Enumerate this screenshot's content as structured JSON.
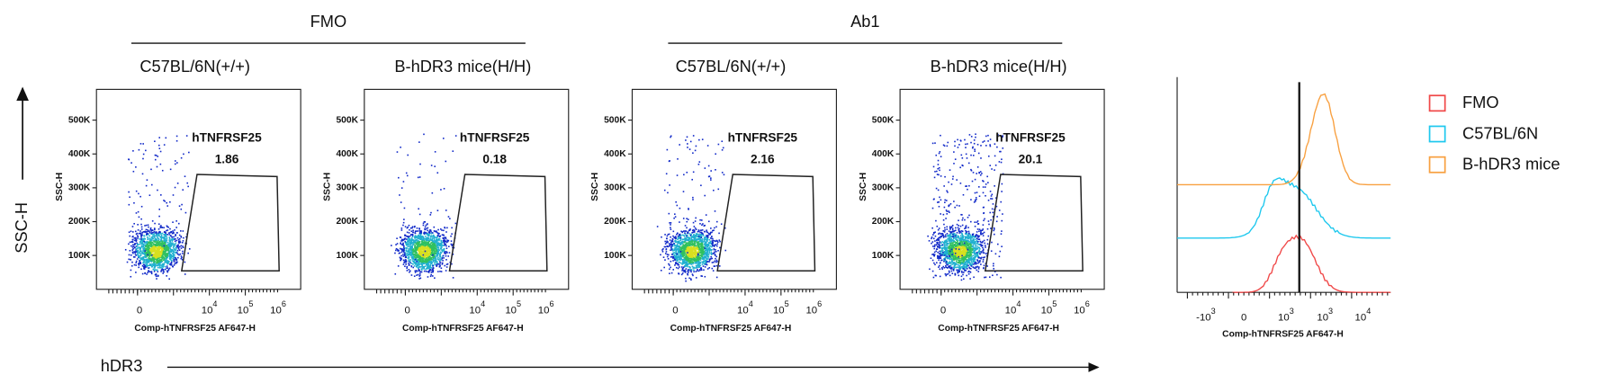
{
  "groups": [
    {
      "label": "FMO"
    },
    {
      "label": "Ab1"
    }
  ],
  "panels": [
    {
      "title": "C57BL/6N(+/+)",
      "gate_label": "hTNFRSF25",
      "gate_value": "1.86"
    },
    {
      "title": "B-hDR3 mice(H/H)",
      "gate_label": "hTNFRSF25",
      "gate_value": "0.18"
    },
    {
      "title": "C57BL/6N(+/+)",
      "gate_label": "hTNFRSF25",
      "gate_value": "2.16"
    },
    {
      "title": "B-hDR3 mice(H/H)",
      "gate_label": "hTNFRSF25",
      "gate_value": "20.1"
    }
  ],
  "dot_plot_axes": {
    "y_label": "SSC-H",
    "x_label": "Comp-hTNFRSF25 AF647-H",
    "yticks": [
      "500K",
      "400K",
      "300K",
      "200K",
      "100K"
    ],
    "xticks": [
      {
        "base": "0"
      },
      {
        "base": "10",
        "exp": "4"
      },
      {
        "base": "10",
        "exp": "5"
      },
      {
        "base": "10",
        "exp": "6"
      }
    ]
  },
  "histogram": {
    "x_label": "Comp-hTNFRSF25 AF647-H",
    "xticks": [
      {
        "base": "-10",
        "exp": "3"
      },
      {
        "base": "0"
      },
      {
        "base": "10",
        "exp": "3"
      },
      {
        "base": "10",
        "exp": "3"
      },
      {
        "base": "10",
        "exp": "4"
      }
    ],
    "legend": [
      {
        "name": "FMO",
        "color": "#f04848"
      },
      {
        "name": "C57BL/6N",
        "color": "#1ec8ee"
      },
      {
        "name": "B-hDR3 mice",
        "color": "#f8a040"
      }
    ]
  },
  "figure_y_label": "SSC-H",
  "figure_x_label": "hDR3"
}
